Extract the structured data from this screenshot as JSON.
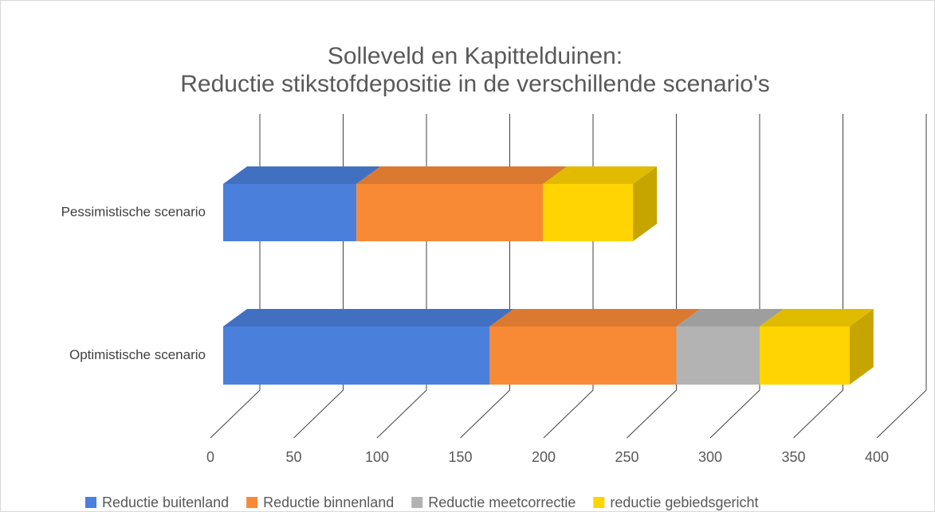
{
  "chart_data": {
    "type": "bar3d_stacked_horizontal",
    "title_lines": [
      "Solleveld en Kapittelduinen:",
      "Reductie stikstofdepositie in de verschillende scenario's"
    ],
    "categories": [
      "Pessimistische scenario",
      "Optimistische scenario"
    ],
    "series": [
      {
        "name": "Reductie buitenland",
        "color": "#4a7fdb",
        "values": [
          80,
          160
        ]
      },
      {
        "name": "Reductie binnenland",
        "color": "#f88a35",
        "values": [
          112,
          112
        ]
      },
      {
        "name": "Reductie meetcorrectie",
        "color": "#b3b3b3",
        "values": [
          0,
          50
        ]
      },
      {
        "name": "reductie gebiedsgericht",
        "color": "#ffd400",
        "values": [
          54,
          54
        ]
      }
    ],
    "xlim": [
      0,
      400
    ],
    "xticks": [
      0,
      50,
      100,
      150,
      200,
      250,
      300,
      350,
      400
    ],
    "grid": true,
    "legend": "bottom"
  }
}
